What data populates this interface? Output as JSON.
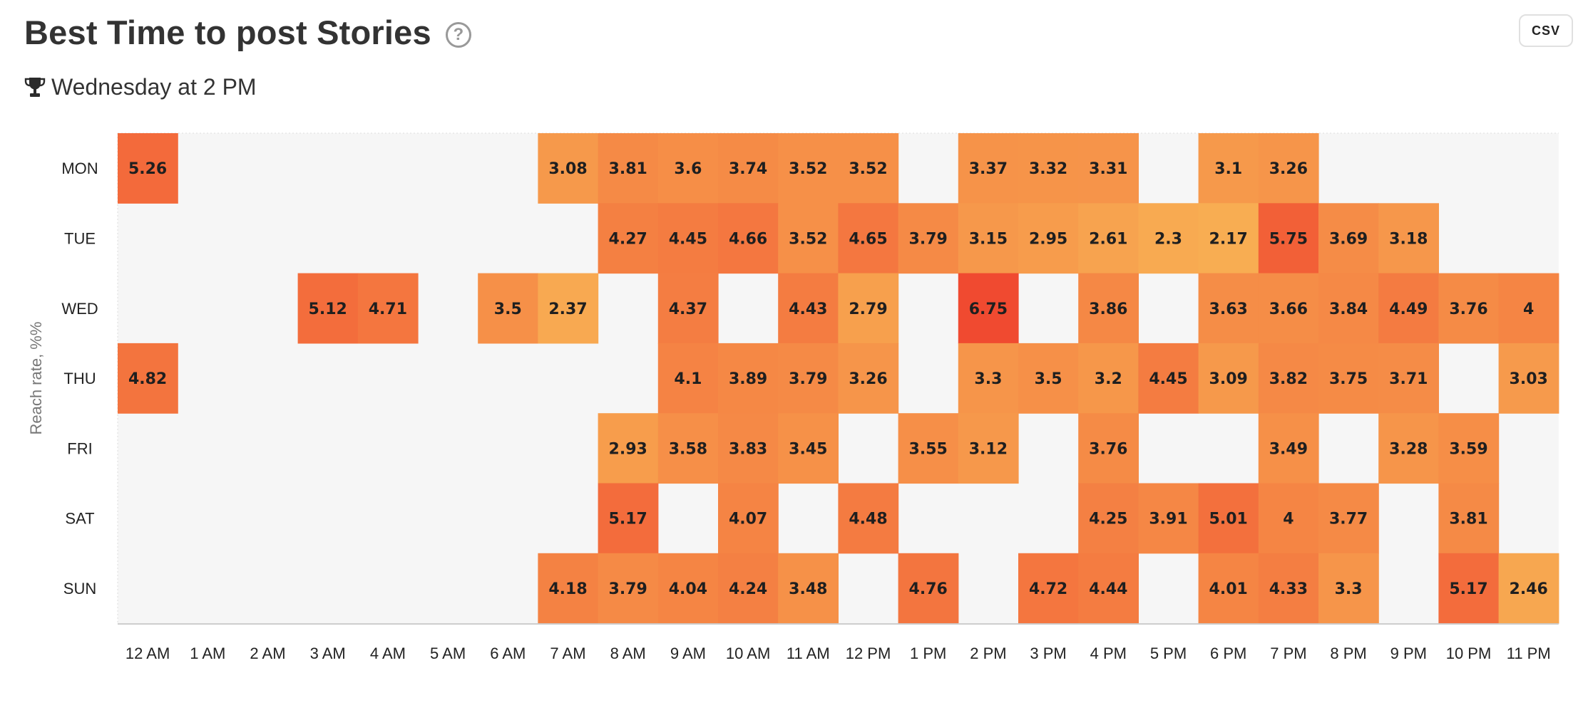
{
  "header": {
    "title": "Best Time to post Stories",
    "help_symbol": "?",
    "csv_label": "CSV",
    "best_time": "Wednesday at 2 PM"
  },
  "icons": {
    "help": "question-circle-icon",
    "trophy": "trophy-icon"
  },
  "chart_data": {
    "type": "heatmap",
    "title": "",
    "xlabel": "",
    "ylabel": "Reach rate, %%",
    "x_categories": [
      "12 AM",
      "1 AM",
      "2 AM",
      "3 AM",
      "4 AM",
      "5 AM",
      "6 AM",
      "7 AM",
      "8 AM",
      "9 AM",
      "10 AM",
      "11 AM",
      "12 PM",
      "1 PM",
      "2 PM",
      "3 PM",
      "4 PM",
      "5 PM",
      "6 PM",
      "7 PM",
      "8 PM",
      "9 PM",
      "10 PM",
      "11 PM"
    ],
    "y_categories": [
      "MON",
      "TUE",
      "WED",
      "THU",
      "FRI",
      "SAT",
      "SUN"
    ],
    "values": [
      [
        5.26,
        null,
        null,
        null,
        null,
        null,
        null,
        3.08,
        3.81,
        3.6,
        3.74,
        3.52,
        3.52,
        null,
        3.37,
        3.32,
        3.31,
        null,
        3.1,
        3.26,
        null,
        null,
        null,
        null
      ],
      [
        null,
        null,
        null,
        null,
        null,
        null,
        null,
        null,
        4.27,
        4.45,
        4.66,
        3.52,
        4.65,
        3.79,
        3.15,
        2.95,
        2.61,
        2.3,
        2.17,
        5.75,
        3.69,
        3.18,
        null,
        null
      ],
      [
        null,
        null,
        null,
        5.12,
        4.71,
        null,
        3.5,
        2.37,
        null,
        4.37,
        null,
        4.43,
        2.79,
        null,
        6.75,
        null,
        3.86,
        null,
        3.63,
        3.66,
        3.84,
        4.49,
        3.76,
        4
      ],
      [
        4.82,
        null,
        null,
        null,
        null,
        null,
        null,
        null,
        null,
        4.1,
        3.89,
        3.79,
        3.26,
        null,
        3.3,
        3.5,
        3.2,
        4.45,
        3.09,
        3.82,
        3.75,
        3.71,
        null,
        3.03
      ],
      [
        null,
        null,
        null,
        null,
        null,
        null,
        null,
        null,
        2.93,
        3.58,
        3.83,
        3.45,
        null,
        3.55,
        3.12,
        null,
        3.76,
        null,
        null,
        3.49,
        null,
        3.28,
        3.59,
        null
      ],
      [
        null,
        null,
        null,
        null,
        null,
        null,
        null,
        null,
        5.17,
        null,
        4.07,
        null,
        4.48,
        null,
        null,
        null,
        4.25,
        3.91,
        5.01,
        4,
        3.77,
        null,
        3.81,
        null
      ],
      [
        null,
        null,
        null,
        null,
        null,
        null,
        null,
        4.18,
        3.79,
        4.04,
        4.24,
        3.48,
        null,
        4.76,
        null,
        4.72,
        4.44,
        null,
        4.01,
        4.33,
        3.3,
        null,
        5.17,
        2.46
      ]
    ],
    "color_scale": [
      "#f8ad52",
      "#f04a30"
    ],
    "empty_color": "#f6f6f6",
    "value_range": [
      2.17,
      6.75
    ],
    "grid": false,
    "legend": "none"
  }
}
